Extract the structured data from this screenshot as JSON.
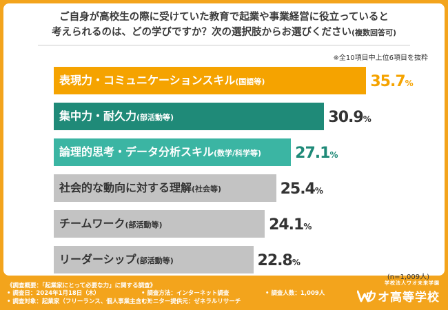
{
  "question": {
    "line1": "ご自身が高校生の際に受けていた教育で起業や事業経営に役立っていると",
    "line2_main": "考えられるのは、どの学びですか？次の選択肢からお選びください",
    "line2_sub": "(複数回答可)"
  },
  "note": "※全10項目中上位6項目を抜粋",
  "sample_size": "(n=1,009人)",
  "chart_data": {
    "type": "bar",
    "orientation": "horizontal",
    "xlim": [
      0,
      40
    ],
    "categories": [
      {
        "main": "表現力・コミュニケーションスキル",
        "sub": "(国語等)"
      },
      {
        "main": "集中力・耐久力",
        "sub": "(部活動等)"
      },
      {
        "main": "論理的思考・データ分析スキル",
        "sub": "(数学/科学等)"
      },
      {
        "main": "社会的な動向に対する理解",
        "sub": "(社会等)"
      },
      {
        "main": "チームワーク",
        "sub": "(部活動等)"
      },
      {
        "main": "リーダーシップ",
        "sub": "(部活動等)"
      }
    ],
    "values": [
      35.7,
      30.9,
      27.1,
      25.4,
      24.1,
      22.8
    ],
    "value_labels": [
      {
        "int": "35.7",
        "unit": "%"
      },
      {
        "int": "30.9",
        "unit": "%"
      },
      {
        "int": "27.1",
        "unit": "%"
      },
      {
        "int": "25.4",
        "unit": "%"
      },
      {
        "int": "24.1",
        "unit": "%"
      },
      {
        "int": "22.8",
        "unit": "%"
      }
    ],
    "bar_colors": [
      "#f5a300",
      "#1f8a78",
      "#3bb5a3",
      "#c3c3c3",
      "#c3c3c3",
      "#c3c3c3"
    ],
    "value_colors": [
      "#f5a300",
      "#333333",
      "#1f8a78",
      "#333333",
      "#333333",
      "#333333"
    ],
    "label_dark": [
      false,
      false,
      false,
      true,
      true,
      true
    ]
  },
  "footer": {
    "title": "《調査概要：「起業家にとって必要な力」に関する調査》",
    "date": "• 調査日：2024年1月18日（木）",
    "target": "• 調査対象：起業家（フリーランス、個人事業主含む）",
    "method": "• 調査方法：インターネット調査",
    "provider": "• モニター提供元：ゼネラルリサーチ",
    "count": "• 調査人数：1,009人",
    "logo_sub": "学校法人ワオ未来学園",
    "logo_main": "ワオ高等学校"
  },
  "colors": {
    "background": "#f3a41c",
    "card": "#ffffff"
  }
}
